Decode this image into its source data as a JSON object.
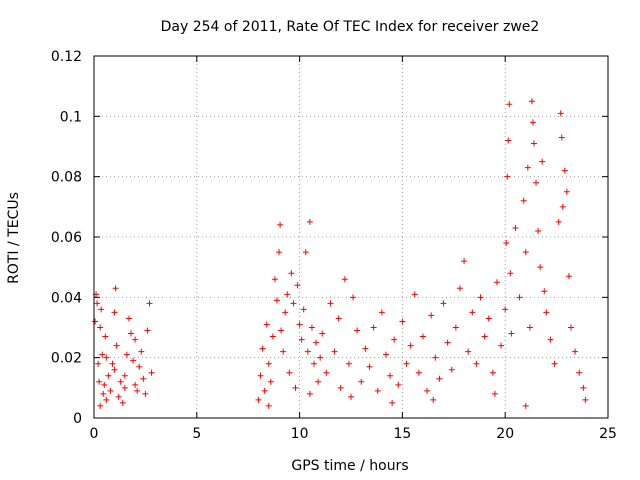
{
  "chart_data": {
    "type": "scatter",
    "title": "Day 254 of 2011, Rate Of TEC Index for receiver zwe2",
    "xlabel": "GPS time / hours",
    "ylabel": "ROTI / TECUs",
    "xlim": [
      0,
      25
    ],
    "ylim": [
      0,
      0.12
    ],
    "xticks": [
      "0",
      "5",
      "10",
      "15",
      "20",
      "25"
    ],
    "yticks": [
      "0",
      "0.02",
      "0.04",
      "0.06",
      "0.08",
      "0.1",
      "0.12"
    ],
    "grid": true,
    "marker": "+",
    "color": "#ff0000",
    "series": [
      {
        "points": [
          [
            0.05,
            0.032
          ],
          [
            0.1,
            0.041
          ],
          [
            0.15,
            0.038
          ],
          [
            0.2,
            0.018
          ],
          [
            0.25,
            0.012
          ],
          [
            0.3,
            0.03
          ],
          [
            0.35,
            0.036
          ],
          [
            0.4,
            0.021
          ],
          [
            0.45,
            0.008
          ],
          [
            0.5,
            0.011
          ],
          [
            0.55,
            0.027
          ],
          [
            0.6,
            0.006
          ],
          [
            0.7,
            0.014
          ],
          [
            0.8,
            0.009
          ],
          [
            0.9,
            0.018
          ],
          [
            1.0,
            0.035
          ],
          [
            1.05,
            0.043
          ],
          [
            1.1,
            0.024
          ],
          [
            1.2,
            0.007
          ],
          [
            1.3,
            0.012
          ],
          [
            1.4,
            0.005
          ],
          [
            1.5,
            0.01
          ],
          [
            1.6,
            0.021
          ],
          [
            1.7,
            0.033
          ],
          [
            1.8,
            0.028
          ],
          [
            1.9,
            0.019
          ],
          [
            2.0,
            0.011
          ],
          [
            2.1,
            0.009
          ],
          [
            2.2,
            0.017
          ],
          [
            2.3,
            0.022
          ],
          [
            2.4,
            0.013
          ],
          [
            2.5,
            0.008
          ],
          [
            2.6,
            0.029
          ],
          [
            2.7,
            0.038
          ],
          [
            2.8,
            0.015
          ],
          [
            0.3,
            0.004
          ],
          [
            0.6,
            0.02
          ],
          [
            1.0,
            0.016
          ],
          [
            1.5,
            0.014
          ],
          [
            2.0,
            0.026
          ],
          [
            8.0,
            0.006
          ],
          [
            8.1,
            0.014
          ],
          [
            8.2,
            0.023
          ],
          [
            8.3,
            0.009
          ],
          [
            8.4,
            0.031
          ],
          [
            8.5,
            0.018
          ],
          [
            8.6,
            0.012
          ],
          [
            8.7,
            0.027
          ],
          [
            8.8,
            0.046
          ],
          [
            8.9,
            0.039
          ],
          [
            9.0,
            0.055
          ],
          [
            9.05,
            0.064
          ],
          [
            9.1,
            0.029
          ],
          [
            9.2,
            0.022
          ],
          [
            9.3,
            0.035
          ],
          [
            9.4,
            0.041
          ],
          [
            9.5,
            0.015
          ],
          [
            9.6,
            0.048
          ],
          [
            9.7,
            0.038
          ],
          [
            9.8,
            0.01
          ],
          [
            9.9,
            0.044
          ],
          [
            10.0,
            0.031
          ],
          [
            10.1,
            0.026
          ],
          [
            10.2,
            0.036
          ],
          [
            10.3,
            0.055
          ],
          [
            10.4,
            0.022
          ],
          [
            10.5,
            0.065
          ],
          [
            10.6,
            0.03
          ],
          [
            10.7,
            0.018
          ],
          [
            10.8,
            0.025
          ],
          [
            10.9,
            0.012
          ],
          [
            11.0,
            0.02
          ],
          [
            11.1,
            0.028
          ],
          [
            11.3,
            0.015
          ],
          [
            11.5,
            0.038
          ],
          [
            11.7,
            0.022
          ],
          [
            11.9,
            0.033
          ],
          [
            12.0,
            0.01
          ],
          [
            12.2,
            0.046
          ],
          [
            12.4,
            0.018
          ],
          [
            12.6,
            0.04
          ],
          [
            12.8,
            0.029
          ],
          [
            13.0,
            0.012
          ],
          [
            13.2,
            0.023
          ],
          [
            13.4,
            0.017
          ],
          [
            13.6,
            0.03
          ],
          [
            13.8,
            0.009
          ],
          [
            14.0,
            0.035
          ],
          [
            14.2,
            0.021
          ],
          [
            14.4,
            0.014
          ],
          [
            14.6,
            0.026
          ],
          [
            14.8,
            0.011
          ],
          [
            15.0,
            0.032
          ],
          [
            15.2,
            0.018
          ],
          [
            15.4,
            0.024
          ],
          [
            15.6,
            0.041
          ],
          [
            15.8,
            0.015
          ],
          [
            16.0,
            0.027
          ],
          [
            16.2,
            0.009
          ],
          [
            16.4,
            0.034
          ],
          [
            16.6,
            0.02
          ],
          [
            16.8,
            0.013
          ],
          [
            17.0,
            0.038
          ],
          [
            17.2,
            0.025
          ],
          [
            17.4,
            0.016
          ],
          [
            17.6,
            0.03
          ],
          [
            17.8,
            0.043
          ],
          [
            18.0,
            0.052
          ],
          [
            18.2,
            0.022
          ],
          [
            18.4,
            0.035
          ],
          [
            18.6,
            0.018
          ],
          [
            18.8,
            0.04
          ],
          [
            19.0,
            0.027
          ],
          [
            19.2,
            0.033
          ],
          [
            19.4,
            0.015
          ],
          [
            19.6,
            0.045
          ],
          [
            19.8,
            0.024
          ],
          [
            20.0,
            0.036
          ],
          [
            20.05,
            0.058
          ],
          [
            20.1,
            0.08
          ],
          [
            20.15,
            0.092
          ],
          [
            20.2,
            0.104
          ],
          [
            20.25,
            0.048
          ],
          [
            20.3,
            0.028
          ],
          [
            20.5,
            0.063
          ],
          [
            20.7,
            0.04
          ],
          [
            20.9,
            0.072
          ],
          [
            21.0,
            0.055
          ],
          [
            21.1,
            0.083
          ],
          [
            21.2,
            0.03
          ],
          [
            21.3,
            0.105
          ],
          [
            21.35,
            0.098
          ],
          [
            21.4,
            0.091
          ],
          [
            21.5,
            0.078
          ],
          [
            21.6,
            0.062
          ],
          [
            21.7,
            0.05
          ],
          [
            21.8,
            0.085
          ],
          [
            21.9,
            0.042
          ],
          [
            22.0,
            0.035
          ],
          [
            22.2,
            0.026
          ],
          [
            22.4,
            0.018
          ],
          [
            22.6,
            0.065
          ],
          [
            22.7,
            0.101
          ],
          [
            22.75,
            0.093
          ],
          [
            22.8,
            0.07
          ],
          [
            22.9,
            0.082
          ],
          [
            23.0,
            0.075
          ],
          [
            23.1,
            0.047
          ],
          [
            23.2,
            0.03
          ],
          [
            23.4,
            0.022
          ],
          [
            23.6,
            0.015
          ],
          [
            23.8,
            0.01
          ],
          [
            23.9,
            0.006
          ],
          [
            21.0,
            0.004
          ],
          [
            19.5,
            0.008
          ],
          [
            16.5,
            0.006
          ],
          [
            14.5,
            0.005
          ],
          [
            12.5,
            0.007
          ],
          [
            10.5,
            0.008
          ],
          [
            8.5,
            0.004
          ]
        ]
      }
    ]
  }
}
